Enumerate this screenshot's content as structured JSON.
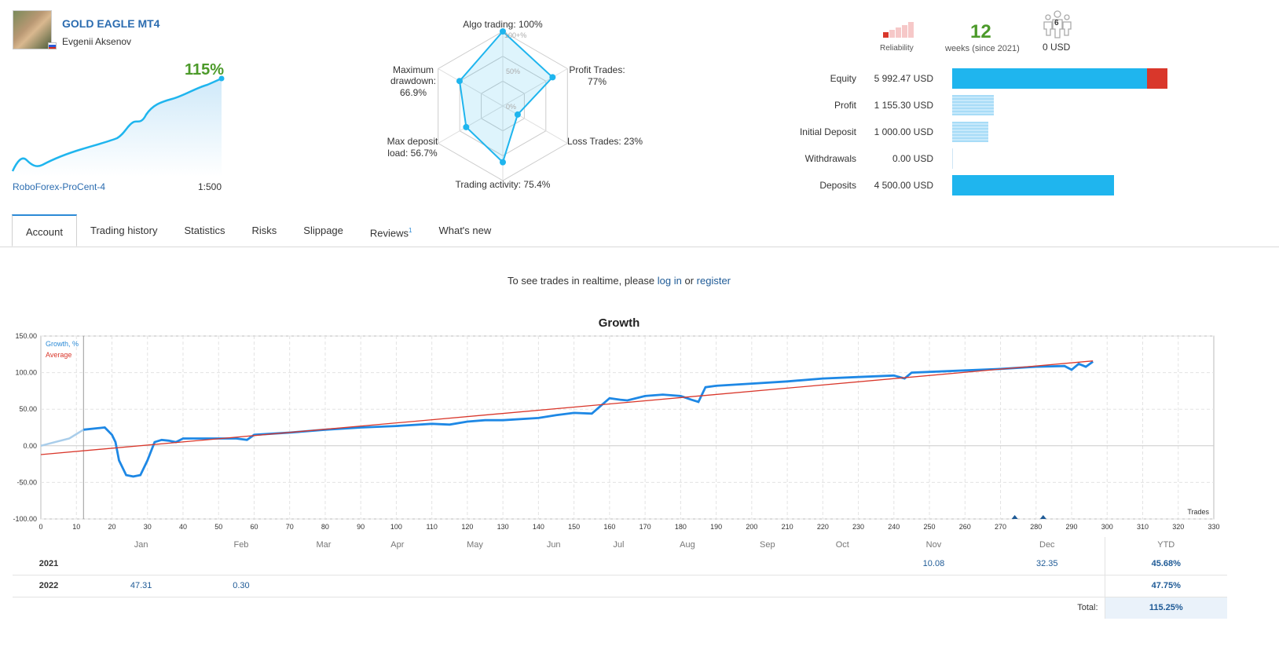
{
  "account": {
    "title": "GOLD EAGLE MT4",
    "author": "Evgenii Aksenov",
    "growth": "115%",
    "broker": "RoboForex-ProCent-4",
    "leverage": "1:500"
  },
  "radar": {
    "labels": {
      "algo": "Algo trading: 100%",
      "profit_trades_1": "Profit Trades:",
      "profit_trades_2": "77%",
      "loss_trades": "Loss Trades: 23%",
      "trading_activity": "Trading activity: 75.4%",
      "max_deposit_1": "Max deposit",
      "max_deposit_2": "load: 56.7%",
      "max_dd_1": "Maximum",
      "max_dd_2": "drawdown:",
      "max_dd_3": "66.9%",
      "scale_100": "100+%",
      "scale_50": "50%",
      "scale_0": "0%"
    },
    "values": {
      "algo": 100,
      "profit_trades": 77,
      "loss_trades": 23,
      "trading_activity": 75.4,
      "max_deposit_load": 56.7,
      "max_drawdown": 66.9
    }
  },
  "summary": {
    "reliability_label": "Reliability",
    "weeks": "12",
    "weeks_label": "weeks (since 2021)",
    "subscribers": "6",
    "subscribers_funds": "0 USD",
    "rows": [
      {
        "label": "Equity",
        "value": "5 992.47 USD"
      },
      {
        "label": "Profit",
        "value": "1 155.30 USD"
      },
      {
        "label": "Initial Deposit",
        "value": "1 000.00 USD"
      },
      {
        "label": "Withdrawals",
        "value": "0.00 USD"
      },
      {
        "label": "Deposits",
        "value": "4 500.00 USD"
      }
    ],
    "colors": {
      "bar": "#1fb5ee",
      "bar_light": "#a8dcf7",
      "drawdown": "#d9372b",
      "growth": "#4c9a2a",
      "link": "#1e5a96"
    }
  },
  "tabs": [
    "Account",
    "Trading history",
    "Statistics",
    "Risks",
    "Slippage",
    "Reviews",
    "What's new"
  ],
  "tab_badge": "1",
  "active_tab": "Account",
  "realtime": {
    "prefix": "To see trades in realtime, please",
    "login": "log in",
    "or": "or",
    "register": "register"
  },
  "chart_data": {
    "type": "line",
    "title": "Growth",
    "legend": [
      "Growth, %",
      "Average"
    ],
    "xlabel": "Trades",
    "ylim": [
      -100,
      150
    ],
    "xlim": [
      0,
      330
    ],
    "y_ticks": [
      "150.00",
      "100.00",
      "50.00",
      "0.00",
      "-50.00",
      "-100.00"
    ],
    "x_ticks": [
      "0",
      "10",
      "20",
      "30",
      "40",
      "50",
      "60",
      "70",
      "80",
      "90",
      "100",
      "110",
      "120",
      "130",
      "140",
      "150",
      "160",
      "170",
      "180",
      "190",
      "200",
      "210",
      "220",
      "230",
      "240",
      "250",
      "260",
      "270",
      "280",
      "290",
      "300",
      "310",
      "320",
      "330"
    ],
    "months": [
      "Jan",
      "Feb",
      "Mar",
      "Apr",
      "May",
      "Jun",
      "Jul",
      "Aug",
      "Sep",
      "Oct",
      "Nov",
      "Dec"
    ],
    "series": [
      {
        "name": "Growth, %",
        "x": [
          0,
          4,
          8,
          12,
          16,
          18,
          20,
          21,
          22,
          24,
          26,
          28,
          30,
          32,
          34,
          36,
          38,
          40,
          45,
          50,
          55,
          58,
          60,
          70,
          80,
          90,
          100,
          110,
          115,
          120,
          125,
          130,
          140,
          145,
          150,
          155,
          160,
          163,
          165,
          170,
          175,
          180,
          183,
          185,
          187,
          190,
          200,
          210,
          220,
          230,
          240,
          243,
          245,
          250,
          260,
          270,
          280,
          288,
          290,
          292,
          294,
          296
        ],
        "y": [
          0,
          5,
          10,
          22,
          24,
          25,
          15,
          5,
          -20,
          -40,
          -42,
          -40,
          -20,
          5,
          8,
          7,
          5,
          10,
          10,
          10,
          10,
          8,
          15,
          18,
          22,
          25,
          27,
          30,
          29,
          33,
          35,
          35,
          38,
          42,
          45,
          44,
          65,
          63,
          62,
          68,
          70,
          68,
          63,
          60,
          80,
          82,
          85,
          88,
          92,
          94,
          96,
          92,
          100,
          101,
          103,
          105,
          108,
          109,
          104,
          112,
          108,
          115
        ]
      },
      {
        "name": "Average",
        "x": [
          0,
          296
        ],
        "y": [
          -12,
          116
        ]
      }
    ]
  },
  "year_table": {
    "ytd_label": "YTD",
    "total_label": "Total:",
    "total_value": "115.25%",
    "rows": [
      {
        "year": "2021",
        "months": [
          "",
          "",
          "",
          "",
          "",
          "",
          "",
          "",
          "",
          "",
          "10.08",
          "32.35"
        ],
        "ytd": "45.68%"
      },
      {
        "year": "2022",
        "months": [
          "47.31",
          "0.30",
          "",
          "",
          "",
          "",
          "",
          "",
          "",
          "",
          "",
          ""
        ],
        "ytd": "47.75%"
      }
    ]
  }
}
